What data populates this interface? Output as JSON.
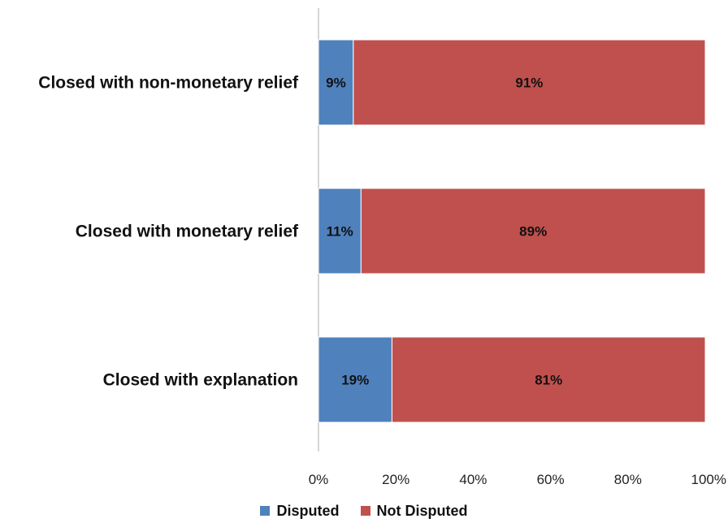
{
  "chart_data": {
    "type": "bar",
    "orientation": "horizontal",
    "stacked": true,
    "categories": [
      "Closed with non-monetary relief",
      "Closed with monetary relief",
      "Closed with explanation"
    ],
    "series": [
      {
        "name": "Disputed",
        "values": [
          9,
          11,
          19
        ],
        "labels": [
          "9%",
          "11%",
          "19%"
        ],
        "color": "#4F81BD"
      },
      {
        "name": "Not Disputed",
        "values": [
          91,
          89,
          81
        ],
        "labels": [
          "91%",
          "89%",
          "81%"
        ],
        "color": "#C0504D"
      }
    ],
    "xlim": [
      0,
      100
    ],
    "xticks": [
      "0%",
      "20%",
      "40%",
      "60%",
      "80%",
      "100%"
    ],
    "title": "",
    "xlabel": "",
    "ylabel": "",
    "grid": false,
    "legend_position": "bottom"
  }
}
